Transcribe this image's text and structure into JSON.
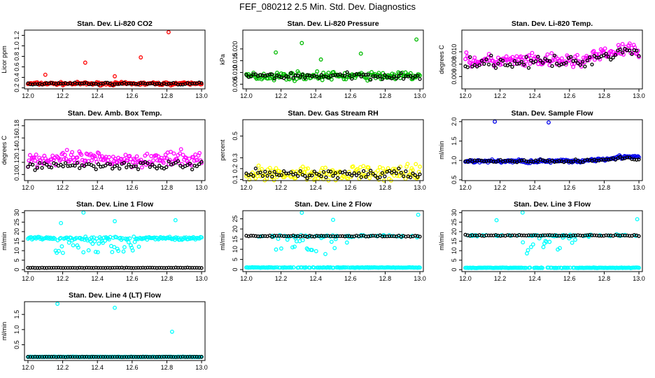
{
  "page_title": "FEF_080212  2.5 Min. Std. Dev. Diagnostics",
  "chart_data": [
    {
      "type": "scatter",
      "title": "Stan. Dev. Li-820 CO2",
      "ylabel": "Licor ppm",
      "xlim": [
        11.98,
        13.02
      ],
      "ylim": [
        0.18,
        1.3
      ],
      "xticks": [
        12.0,
        12.2,
        12.4,
        12.6,
        12.8,
        13.0
      ],
      "yticks": [
        0.2,
        0.4,
        0.6,
        0.8,
        1.0,
        1.2
      ],
      "series": [
        {
          "name": "primary",
          "color": "#ff0000",
          "base": 0.28,
          "noise": 0.04,
          "points": [
            [
              12.1,
              0.45
            ],
            [
              12.33,
              0.68
            ],
            [
              12.65,
              0.78
            ],
            [
              12.81,
              1.26
            ],
            [
              12.5,
              0.42
            ]
          ]
        },
        {
          "name": "secondary",
          "color": "#000000",
          "base": 0.28,
          "noise": 0.03
        }
      ]
    },
    {
      "type": "scatter",
      "title": "Stan. Dev. Li-820 Pressure",
      "ylabel": "kPa",
      "xlim": [
        11.98,
        13.02
      ],
      "ylim": [
        0.003,
        0.028
      ],
      "xticks": [
        12.0,
        12.2,
        12.4,
        12.6,
        12.8,
        13.0
      ],
      "yticks": [
        0.005,
        0.01,
        0.015,
        0.02
      ],
      "series": [
        {
          "name": "primary",
          "color": "#00bb00",
          "base": 0.0085,
          "noise": 0.0025,
          "points": [
            [
              12.17,
              0.0185
            ],
            [
              12.32,
              0.0225
            ],
            [
              12.43,
              0.0155
            ],
            [
              12.66,
              0.018
            ],
            [
              12.98,
              0.024
            ]
          ]
        },
        {
          "name": "secondary",
          "color": "#000000",
          "base": 0.0085,
          "noise": 0.002
        }
      ]
    },
    {
      "type": "scatter",
      "title": "Stan. Dev. Li-820 Temp.",
      "ylabel": "degrees C",
      "xlim": [
        11.98,
        13.02
      ],
      "ylim": [
        0.004,
        0.0135
      ],
      "xticks": [
        12.0,
        12.2,
        12.4,
        12.6,
        12.8,
        13.0
      ],
      "yticks": [
        0.006,
        0.008,
        0.01
      ],
      "series": [
        {
          "name": "primary",
          "color": "#ff00ff",
          "base": 0.0085,
          "noise": 0.0016,
          "trend": 0.0025
        },
        {
          "name": "secondary",
          "color": "#000000",
          "base": 0.0083,
          "noise": 0.0014,
          "trend": 0.0025
        }
      ]
    },
    {
      "type": "scatter",
      "title": "Stan. Dev. Amb. Box Temp.",
      "ylabel": "degrees C",
      "xlim": [
        11.98,
        13.02
      ],
      "ylim": [
        0.09,
        0.19
      ],
      "xticks": [
        12.0,
        12.2,
        12.4,
        12.6,
        12.8,
        13.0
      ],
      "yticks": [
        0.1,
        0.12,
        0.14,
        0.16,
        0.18
      ],
      "series": [
        {
          "name": "primary",
          "color": "#ff00ff",
          "base": 0.125,
          "noise": 0.018
        },
        {
          "name": "secondary",
          "color": "#000000",
          "base": 0.115,
          "noise": 0.01
        }
      ]
    },
    {
      "type": "scatter",
      "title": "Stan. Dev. Gas Stream RH",
      "ylabel": "percent",
      "xlim": [
        11.98,
        13.02
      ],
      "ylim": [
        0.09,
        0.65
      ],
      "xticks": [
        12.0,
        12.2,
        12.4,
        12.6,
        12.8,
        13.0
      ],
      "yticks": [
        0.1,
        0.2,
        0.3,
        0.5
      ],
      "series": [
        {
          "name": "primary",
          "color": "#ffff00",
          "base": 0.15,
          "noise": 0.12
        },
        {
          "name": "secondary",
          "color": "#000000",
          "base": 0.15,
          "noise": 0.06
        }
      ]
    },
    {
      "type": "scatter",
      "title": "Stan. Dev. Sample Flow",
      "ylabel": "ml/min",
      "xlim": [
        11.98,
        13.02
      ],
      "ylim": [
        0.48,
        2.05
      ],
      "xticks": [
        12.0,
        12.2,
        12.4,
        12.6,
        12.8,
        13.0
      ],
      "yticks": [
        0.5,
        1.0,
        1.5,
        2.0
      ],
      "series": [
        {
          "name": "primary",
          "color": "#0000ee",
          "base": 0.98,
          "noise": 0.07,
          "trend": 0.15,
          "points": [
            [
              12.17,
              2.0
            ],
            [
              12.48,
              1.98
            ]
          ]
        },
        {
          "name": "secondary",
          "color": "#000000",
          "base": 0.98,
          "noise": 0.06,
          "trend": 0.1
        }
      ]
    },
    {
      "type": "scatter",
      "title": "Stan. Dev. Line 1 Flow",
      "ylabel": "ml/min",
      "xlim": [
        11.98,
        13.02
      ],
      "ylim": [
        -1,
        31
      ],
      "xticks": [
        12.0,
        12.2,
        12.4,
        12.6,
        12.8,
        13.0
      ],
      "yticks": [
        0,
        5,
        10,
        15,
        20,
        25,
        30
      ],
      "series": [
        {
          "name": "primary",
          "color": "#00ffff",
          "base": 16.5,
          "noise": 1.2,
          "scatter": [
            12.15,
            12.65
          ],
          "points": [
            [
              12.32,
              30
            ],
            [
              12.19,
              24.5
            ],
            [
              12.5,
              25.5
            ],
            [
              12.85,
              26
            ]
          ]
        },
        {
          "name": "secondary",
          "color": "#000000",
          "base": 1.0,
          "noise": 0.15
        }
      ]
    },
    {
      "type": "scatter",
      "title": "Stan. Dev. Line 2 Flow",
      "ylabel": "ml/min",
      "xlim": [
        11.98,
        13.02
      ],
      "ylim": [
        -1,
        29
      ],
      "xticks": [
        12.0,
        12.2,
        12.4,
        12.6,
        12.8,
        13.0
      ],
      "yticks": [
        0,
        5,
        10,
        15,
        20,
        25
      ],
      "series": [
        {
          "name": "primary",
          "color": "#00ffff",
          "base": 1.0,
          "noise": 0.2,
          "upper": 16.5,
          "scatter": [
            12.15,
            12.6
          ],
          "points": [
            [
              12.32,
              28
            ],
            [
              12.5,
              24.5
            ],
            [
              12.99,
              27
            ]
          ]
        },
        {
          "name": "secondary",
          "color": "#000000",
          "base": 16.5,
          "noise": 0.5
        }
      ]
    },
    {
      "type": "scatter",
      "title": "Stan. Dev. Line 3 Flow",
      "ylabel": "ml/min",
      "xlim": [
        11.98,
        13.02
      ],
      "ylim": [
        -1,
        31
      ],
      "xticks": [
        12.0,
        12.2,
        12.4,
        12.6,
        12.8,
        13.0
      ],
      "yticks": [
        0,
        5,
        10,
        15,
        20,
        25,
        30
      ],
      "series": [
        {
          "name": "primary",
          "color": "#00ffff",
          "base": 1.0,
          "noise": 0.2,
          "upper": 18,
          "scatter": [
            12.3,
            12.65
          ],
          "points": [
            [
              12.33,
              30
            ],
            [
              12.18,
              26
            ],
            [
              12.99,
              26.5
            ]
          ]
        },
        {
          "name": "secondary",
          "color": "#000000",
          "base": 18,
          "noise": 0.5
        }
      ]
    },
    {
      "type": "scatter",
      "title": "Stan. Dev. Line 4 (LT) Flow",
      "ylabel": "ml/min",
      "xlim": [
        11.98,
        13.02
      ],
      "ylim": [
        -0.02,
        1.92
      ],
      "xticks": [
        12.0,
        12.2,
        12.4,
        12.6,
        12.8,
        13.0
      ],
      "yticks": [
        0.5,
        1.0,
        1.5
      ],
      "series": [
        {
          "name": "primary",
          "color": "#00ffff",
          "base": 0.1,
          "noise": 0.01,
          "points": [
            [
              12.17,
              1.85
            ],
            [
              12.5,
              1.72
            ],
            [
              12.83,
              0.93
            ]
          ]
        },
        {
          "name": "secondary",
          "color": "#000000",
          "base": 0.1,
          "noise": 0.008
        }
      ]
    }
  ]
}
